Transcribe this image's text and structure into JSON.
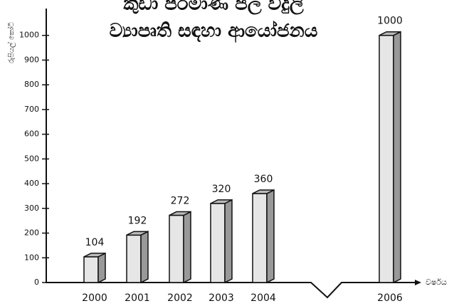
{
  "chart_data": {
    "type": "bar3d",
    "title": [
      "කුඩා පරිමාණ ජල විදුලි",
      "ව්‍යාපෘති සඳහා ආයෝජනය"
    ],
    "y_label": "රුපියල් කෝටි",
    "x_label": "වර්ෂය",
    "categories": [
      "2000",
      "2001",
      "2002",
      "2003",
      "2004",
      "2006"
    ],
    "values": [
      104,
      192,
      272,
      320,
      360,
      1000
    ],
    "color": "#e6e6e6",
    "ylim": [
      0,
      1100
    ],
    "yticks": [
      0,
      100,
      200,
      300,
      400,
      500,
      600,
      700,
      800,
      900,
      1000
    ],
    "grid": false
  }
}
